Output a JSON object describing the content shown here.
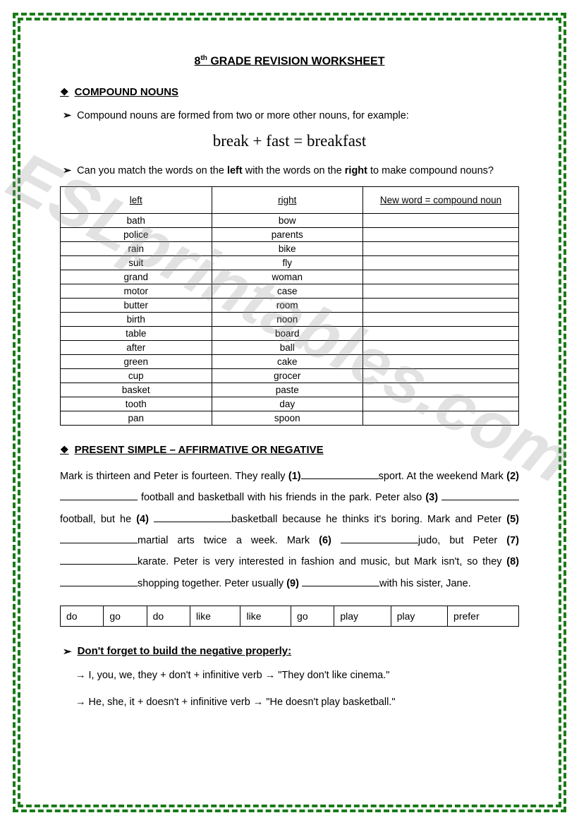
{
  "title_prefix": "8",
  "title_sup": "th",
  "title_rest": " GRADE REVISION WORKSHEET",
  "section1": "COMPOUND NOUNS",
  "intro1": "Compound nouns are formed from two or more other nouns, for example:",
  "equation": "break + fast = breakfast",
  "intro2_a": "Can you match the words on the ",
  "intro2_b": "left",
  "intro2_c": " with the words on the ",
  "intro2_d": "right",
  "intro2_e": " to make compound nouns?",
  "table": {
    "headers": [
      "left",
      "right",
      "New word = compound noun"
    ],
    "rows": [
      [
        "bath",
        "bow",
        ""
      ],
      [
        "police",
        "parents",
        ""
      ],
      [
        "rain",
        "bike",
        ""
      ],
      [
        "suit",
        "fly",
        ""
      ],
      [
        "grand",
        "woman",
        ""
      ],
      [
        "motor",
        "case",
        ""
      ],
      [
        "butter",
        "room",
        ""
      ],
      [
        "birth",
        "noon",
        ""
      ],
      [
        "table",
        "board",
        ""
      ],
      [
        "after",
        "ball",
        ""
      ],
      [
        "green",
        "cake",
        ""
      ],
      [
        "cup",
        "grocer",
        ""
      ],
      [
        "basket",
        "paste",
        ""
      ],
      [
        "tooth",
        "day",
        ""
      ],
      [
        "pan",
        "spoon",
        ""
      ]
    ]
  },
  "section2": "PRESENT SIMPLE – AFFIRMATIVE OR NEGATIVE",
  "para": {
    "p1": "Mark is thirteen and Peter is fourteen. They really ",
    "b1": "(1)",
    "p2": "sport. At the weekend Mark ",
    "b2": "(2)",
    "p3": " football and basketball with his friends in the park. Peter also ",
    "b3": "(3)",
    "p4": " football, but he ",
    "b4": "(4)",
    "p5": "basketball because he thinks it's boring. Mark and Peter ",
    "b5": "(5)",
    "p6": "martial arts twice a week. Mark ",
    "b6": "(6)",
    "p7": "judo, but Peter ",
    "b7": "(7)",
    "p8": "karate. Peter is very interested in fashion and music, but Mark isn't, so they ",
    "b8": "(8)",
    "p9": "shopping together. Peter usually ",
    "b9": "(9)",
    "p10": "with his sister, Jane."
  },
  "wordbank": [
    "do",
    "go",
    "do",
    "like",
    "like",
    "go",
    "play",
    "play",
    "prefer"
  ],
  "neg_head": "Don't forget to build the negative properly:",
  "neg1": "→ I, you, we, they + don't + infinitive verb → \"They don't like cinema.\"",
  "neg2": "→ He, she, it + doesn't + infinitive verb → \"He doesn't play basketball.\"",
  "watermark": "ESLprintables.com",
  "colors": {
    "border": "#1a7a1a",
    "text": "#000000",
    "watermark": "rgba(150,150,150,0.28)"
  }
}
